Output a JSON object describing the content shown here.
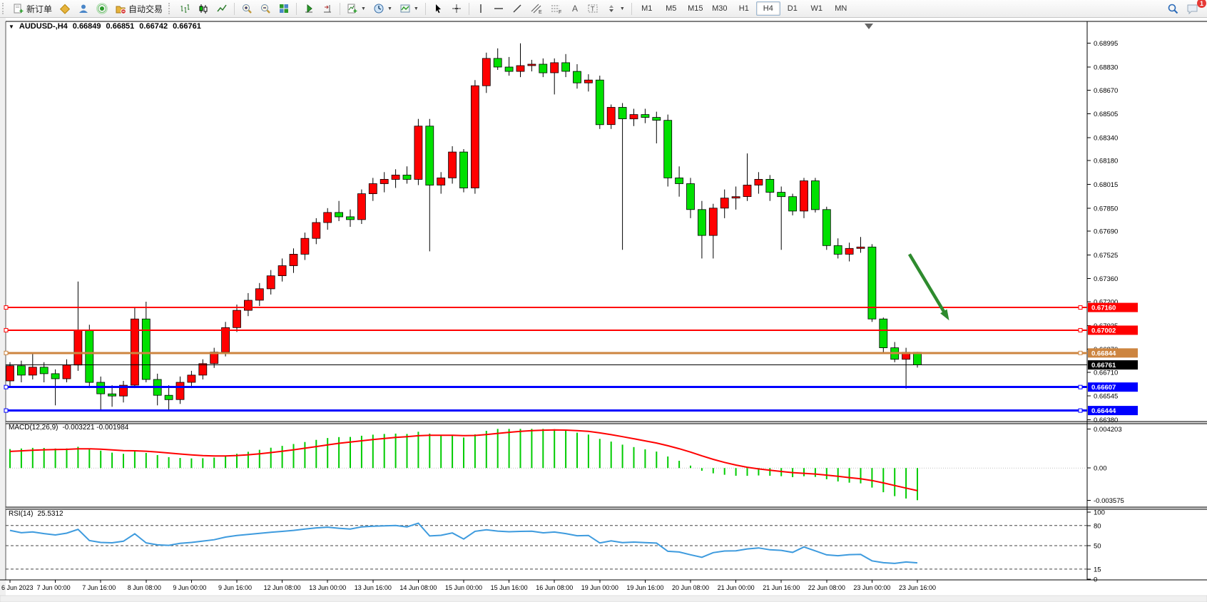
{
  "toolbar": {
    "new_order_label": "新订单",
    "autotrading_label": "自动交易",
    "timeframes": [
      "M1",
      "M5",
      "M15",
      "M30",
      "H1",
      "H4",
      "D1",
      "W1",
      "MN"
    ],
    "active_timeframe": "H4",
    "notification_count": "1"
  },
  "chart": {
    "title": {
      "symbol": "AUDUSD-,H4",
      "open": "0.66849",
      "high": "0.66851",
      "low": "0.66742",
      "close": "0.66761"
    }
  },
  "chart_data": {
    "type": "candlestick",
    "symbol": "AUDUSD-",
    "timeframe": "H4",
    "title": "AUDUSD-,H4",
    "colors": {
      "bull": "#FF0000",
      "bear": "#00E000",
      "wick": "#000000",
      "macd_hist": "#00CC00",
      "macd_signal": "#FF0000",
      "rsi_line": "#3E9BDE",
      "arrow": "#2E8B2E"
    },
    "y_axis_ticks": [
      "0.68995",
      "0.68830",
      "0.68670",
      "0.68505",
      "0.68340",
      "0.68180",
      "0.68015",
      "0.67850",
      "0.67690",
      "0.67525",
      "0.67360",
      "0.67200",
      "0.67035",
      "0.66870",
      "0.66710",
      "0.66545",
      "0.66380"
    ],
    "x_labels": [
      "6 Jun 2023",
      "7 Jun 00:00",
      "7 Jun 16:00",
      "8 Jun 08:00",
      "9 Jun 00:00",
      "9 Jun 16:00",
      "12 Jun 08:00",
      "13 Jun 00:00",
      "13 Jun 16:00",
      "14 Jun 08:00",
      "15 Jun 00:00",
      "15 Jun 16:00",
      "16 Jun 08:00",
      "19 Jun 00:00",
      "19 Jun 16:00",
      "20 Jun 08:00",
      "21 Jun 00:00",
      "21 Jun 16:00",
      "22 Jun 08:00",
      "23 Jun 00:00",
      "23 Jun 16:00"
    ],
    "x_label_every_n_bars": 4,
    "candles": [
      [
        0.6665,
        0.6678,
        0.6661,
        0.66755
      ],
      [
        0.66755,
        0.6679,
        0.6664,
        0.6669
      ],
      [
        0.6669,
        0.6684,
        0.6666,
        0.66745
      ],
      [
        0.66745,
        0.6678,
        0.6664,
        0.667
      ],
      [
        0.667,
        0.6673,
        0.6648,
        0.66665
      ],
      [
        0.66665,
        0.668,
        0.6664,
        0.6676
      ],
      [
        0.6676,
        0.6734,
        0.6672,
        0.67
      ],
      [
        0.67,
        0.6704,
        0.666,
        0.6664
      ],
      [
        0.6664,
        0.6668,
        0.66444,
        0.6656
      ],
      [
        0.6656,
        0.6662,
        0.6647,
        0.66545
      ],
      [
        0.66545,
        0.6665,
        0.665,
        0.6662
      ],
      [
        0.6662,
        0.6716,
        0.666,
        0.6708
      ],
      [
        0.6708,
        0.672,
        0.6664,
        0.6666
      ],
      [
        0.6666,
        0.667,
        0.6648,
        0.6655
      ],
      [
        0.6655,
        0.6662,
        0.6644,
        0.6652
      ],
      [
        0.6652,
        0.6668,
        0.6649,
        0.6664
      ],
      [
        0.6664,
        0.6672,
        0.666,
        0.6669
      ],
      [
        0.6669,
        0.668,
        0.6666,
        0.6677
      ],
      [
        0.6677,
        0.6688,
        0.6674,
        0.6685
      ],
      [
        0.6685,
        0.6706,
        0.6682,
        0.6702
      ],
      [
        0.6702,
        0.6718,
        0.6699,
        0.6714
      ],
      [
        0.6714,
        0.6726,
        0.671,
        0.6721
      ],
      [
        0.6721,
        0.6733,
        0.6717,
        0.6729
      ],
      [
        0.6729,
        0.6742,
        0.6725,
        0.6738
      ],
      [
        0.6738,
        0.675,
        0.6734,
        0.6745
      ],
      [
        0.6745,
        0.6757,
        0.674,
        0.6753
      ],
      [
        0.6753,
        0.6768,
        0.6749,
        0.6764
      ],
      [
        0.6764,
        0.6778,
        0.676,
        0.6775
      ],
      [
        0.6775,
        0.6785,
        0.677,
        0.6782
      ],
      [
        0.6782,
        0.679,
        0.6776,
        0.6779
      ],
      [
        0.6779,
        0.6784,
        0.6772,
        0.6777
      ],
      [
        0.6777,
        0.6798,
        0.6774,
        0.6795
      ],
      [
        0.6795,
        0.6806,
        0.679,
        0.6802
      ],
      [
        0.6802,
        0.681,
        0.6796,
        0.6805
      ],
      [
        0.6805,
        0.6812,
        0.6799,
        0.6808
      ],
      [
        0.6808,
        0.6814,
        0.6802,
        0.6805
      ],
      [
        0.6805,
        0.6847,
        0.6801,
        0.6842
      ],
      [
        0.6842,
        0.6847,
        0.6755,
        0.6801
      ],
      [
        0.6801,
        0.681,
        0.6795,
        0.6806
      ],
      [
        0.6806,
        0.6828,
        0.6802,
        0.6824
      ],
      [
        0.6824,
        0.6826,
        0.6796,
        0.6799
      ],
      [
        0.6799,
        0.6874,
        0.6795,
        0.687
      ],
      [
        0.687,
        0.6893,
        0.6865,
        0.6889
      ],
      [
        0.6889,
        0.6896,
        0.6881,
        0.6883
      ],
      [
        0.6883,
        0.689,
        0.6877,
        0.688
      ],
      [
        0.688,
        0.68995,
        0.6876,
        0.6884
      ],
      [
        0.6884,
        0.6888,
        0.688,
        0.6885
      ],
      [
        0.6885,
        0.6889,
        0.6876,
        0.6879
      ],
      [
        0.6879,
        0.6889,
        0.6864,
        0.6886
      ],
      [
        0.6886,
        0.6892,
        0.6876,
        0.688
      ],
      [
        0.688,
        0.6885,
        0.6868,
        0.6872
      ],
      [
        0.6872,
        0.6878,
        0.6866,
        0.6874
      ],
      [
        0.6874,
        0.6877,
        0.684,
        0.6843
      ],
      [
        0.6843,
        0.6857,
        0.684,
        0.6855
      ],
      [
        0.6855,
        0.6858,
        0.6756,
        0.6847
      ],
      [
        0.6847,
        0.6854,
        0.6842,
        0.685
      ],
      [
        0.685,
        0.6854,
        0.6844,
        0.6848
      ],
      [
        0.6848,
        0.6852,
        0.683,
        0.6846
      ],
      [
        0.6846,
        0.685,
        0.68,
        0.6806
      ],
      [
        0.6806,
        0.6814,
        0.6793,
        0.6802
      ],
      [
        0.6802,
        0.6806,
        0.6778,
        0.6784
      ],
      [
        0.6784,
        0.679,
        0.675,
        0.6766
      ],
      [
        0.6766,
        0.6788,
        0.675,
        0.6785
      ],
      [
        0.6785,
        0.6798,
        0.6778,
        0.6792
      ],
      [
        0.6792,
        0.68,
        0.6784,
        0.6793
      ],
      [
        0.6793,
        0.6823,
        0.679,
        0.6801
      ],
      [
        0.6801,
        0.681,
        0.6795,
        0.6805
      ],
      [
        0.6805,
        0.6808,
        0.679,
        0.6796
      ],
      [
        0.6796,
        0.68,
        0.6756,
        0.6793
      ],
      [
        0.6793,
        0.6795,
        0.678,
        0.6783
      ],
      [
        0.6783,
        0.6806,
        0.6778,
        0.6804
      ],
      [
        0.6804,
        0.6806,
        0.6782,
        0.6784
      ],
      [
        0.6784,
        0.6786,
        0.6756,
        0.6759
      ],
      [
        0.6759,
        0.6764,
        0.675,
        0.6753
      ],
      [
        0.6753,
        0.6761,
        0.6748,
        0.6757
      ],
      [
        0.6757,
        0.6765,
        0.6754,
        0.6758
      ],
      [
        0.6758,
        0.676,
        0.6706,
        0.6708
      ],
      [
        0.6708,
        0.6709,
        0.6685,
        0.6688
      ],
      [
        0.6688,
        0.6692,
        0.6678,
        0.668
      ],
      [
        0.668,
        0.6688,
        0.66597,
        0.66849
      ],
      [
        0.66849,
        0.66851,
        0.66742,
        0.66761
      ]
    ],
    "hlines": [
      {
        "price": 0.6716,
        "label": "0.67160",
        "color": "#FF0000",
        "width": 2
      },
      {
        "price": 0.67002,
        "label": "0.67002",
        "color": "#FF0000",
        "width": 2
      },
      {
        "price": 0.66844,
        "label": "0.66844",
        "color": "#CD8540",
        "width": 3
      },
      {
        "price": 0.66607,
        "label": "0.66607",
        "color": "#0000FF",
        "width": 3
      },
      {
        "price": 0.66444,
        "label": "0.66444",
        "color": "#0000FF",
        "width": 3
      }
    ],
    "bid_line": {
      "price": 0.66761,
      "label": "0.66761",
      "color": "#000000"
    },
    "arrow_annotation": {
      "from_bar": 79.3,
      "from_price": 0.6753,
      "to_bar": 82.8,
      "to_price": 0.6707
    },
    "macd": {
      "name": "MACD(12,26,9)",
      "values": "-0.003221 -0.001984",
      "fast": 12,
      "slow": 26,
      "signal": 9,
      "axis": [
        "0.004203",
        "0.00",
        "-0.003575"
      ],
      "axis_max": 0.004203,
      "axis_min": -0.003575
    },
    "rsi": {
      "name": "RSI(14)",
      "value": "25.5312",
      "period": 14,
      "levels": [
        80,
        50,
        15
      ],
      "axis": [
        "100",
        "80",
        "50",
        "15",
        "0"
      ],
      "axis_max": 100,
      "axis_min": 0
    }
  }
}
